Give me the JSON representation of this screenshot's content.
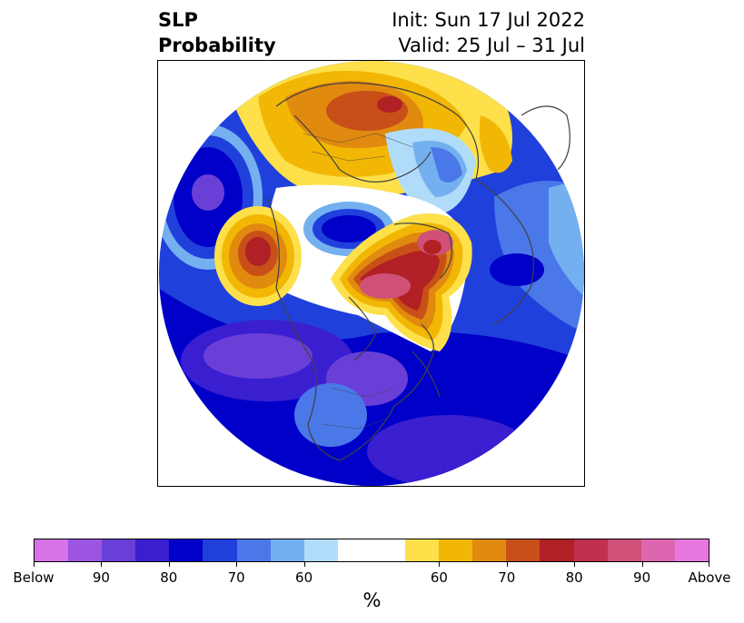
{
  "title": {
    "left_line1": "SLP",
    "left_line2": "Probability",
    "right_line1": "Init: Sun 17 Jul 2022",
    "right_line2": "Valid: 25 Jul – 31 Jul"
  },
  "colorbar": {
    "unit": "%",
    "segments": [
      {
        "color": "#d672e6"
      },
      {
        "color": "#9b55e0"
      },
      {
        "color": "#6a3fd8"
      },
      {
        "color": "#3a1fd0"
      },
      {
        "color": "#0000c8"
      },
      {
        "color": "#2040dc"
      },
      {
        "color": "#4a78e8"
      },
      {
        "color": "#74b0f0"
      },
      {
        "color": "#b0dcfa"
      },
      {
        "color": "#ffffff",
        "wide": true
      },
      {
        "color": "#fde04a"
      },
      {
        "color": "#f2b705"
      },
      {
        "color": "#e08a10"
      },
      {
        "color": "#c85018"
      },
      {
        "color": "#b02024"
      },
      {
        "color": "#c03050"
      },
      {
        "color": "#d05078"
      },
      {
        "color": "#de66b0"
      },
      {
        "color": "#e878e0"
      }
    ],
    "tick_labels": [
      "Below",
      "90",
      "80",
      "70",
      "60",
      "60",
      "70",
      "80",
      "90",
      "Above"
    ]
  },
  "map": {
    "projection": "north-polar-stereographic",
    "field": "SLP probability anomaly",
    "colors": {
      "deep_blue": "#0000c8",
      "mid_blue": "#2040dc",
      "purple": "#6a3fd8",
      "light_blue": "#74b0f0",
      "pale_blue": "#b0dcfa",
      "yellow": "#f2b705",
      "orange": "#e08a10",
      "red": "#b02024",
      "magenta": "#d05078",
      "coastline": "#404040"
    }
  }
}
